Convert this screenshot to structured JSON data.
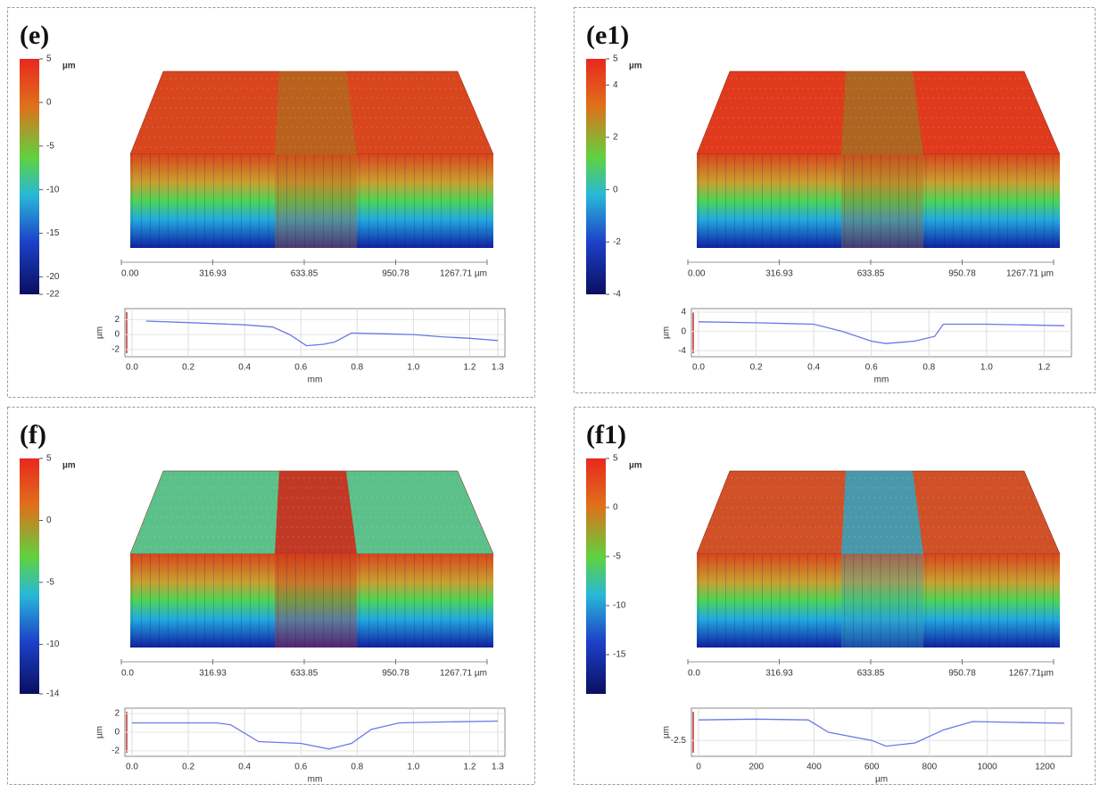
{
  "panels": [
    {
      "label": "(e)",
      "colorbar": {
        "unit": "µm",
        "lim": [
          -22,
          5
        ],
        "ticks": [
          5,
          0,
          -5,
          -10,
          -15,
          -20,
          -22
        ]
      },
      "surface": {
        "xlim": [
          0,
          1267.71
        ],
        "xticks": [
          {
            "value": 0,
            "label": "0.00"
          },
          316.93,
          633.85,
          950.78,
          {
            "value": 1267.71,
            "label": "1267.71 µm"
          }
        ]
      },
      "profile": {
        "ylabel": "µm",
        "xlabel": "mm",
        "xlim": [
          0,
          1.3
        ],
        "ylim": [
          -2.5,
          3
        ],
        "xticks": [
          {
            "value": 0,
            "label": "0.0"
          },
          0.2,
          0.4,
          0.6,
          0.8,
          {
            "value": 1,
            "label": "1.0"
          },
          1.2,
          1.3
        ],
        "yticks": [
          2,
          0,
          -2
        ],
        "x": [
          0.05,
          0.2,
          0.4,
          0.5,
          0.56,
          0.62,
          0.68,
          0.72,
          0.78,
          0.9,
          1.0,
          1.1,
          1.2,
          1.3
        ],
        "values": [
          1.8,
          1.6,
          1.3,
          1.0,
          0,
          -1.5,
          -1.3,
          -1.0,
          0.2,
          0.1,
          0,
          -0.3,
          -0.5,
          -0.8
        ]
      }
    },
    {
      "label": "(e1)",
      "colorbar": {
        "unit": "µm",
        "lim": [
          -4,
          5
        ],
        "ticks": [
          5,
          4,
          2,
          0,
          -2,
          -4
        ]
      },
      "surface": {
        "xlim": [
          0,
          1267.71
        ],
        "xticks": [
          {
            "value": 0,
            "label": "0.00"
          },
          316.93,
          633.85,
          950.78,
          {
            "value": 1267.71,
            "label": "1267.71 µm"
          }
        ]
      },
      "profile": {
        "ylabel": "µm",
        "xlabel": "mm",
        "xlim": [
          0,
          1.27
        ],
        "ylim": [
          -4.5,
          4
        ],
        "xticks": [
          {
            "value": 0,
            "label": "0.0"
          },
          0.2,
          0.4,
          0.6,
          0.8,
          {
            "value": 1,
            "label": "1.0"
          },
          1.2
        ],
        "yticks": [
          4,
          0,
          -4
        ],
        "x": [
          0,
          0.2,
          0.4,
          0.5,
          0.6,
          0.65,
          0.75,
          0.82,
          0.85,
          1.0,
          1.1,
          1.27
        ],
        "values": [
          2,
          1.8,
          1.5,
          0,
          -2,
          -2.5,
          -2,
          -1,
          1.5,
          1.5,
          1.4,
          1.2
        ]
      }
    },
    {
      "label": "(f)",
      "colorbar": {
        "unit": "µm",
        "lim": [
          -14,
          5
        ],
        "ticks": [
          5,
          0,
          -5,
          -10,
          -14
        ]
      },
      "surface": {
        "xlim": [
          0,
          1267.71
        ],
        "xticks": [
          {
            "value": 0,
            "label": "0.0"
          },
          316.93,
          633.85,
          950.78,
          {
            "value": 1267.71,
            "label": "1267.71 µm"
          }
        ]
      },
      "profile": {
        "ylabel": "µm",
        "xlabel": "mm",
        "xlim": [
          0,
          1.3
        ],
        "ylim": [
          -2.2,
          2.2
        ],
        "xticks": [
          {
            "value": 0,
            "label": "0.0"
          },
          0.2,
          0.4,
          0.6,
          0.8,
          {
            "value": 1,
            "label": "1.0"
          },
          1.2,
          1.3
        ],
        "yticks": [
          2,
          0,
          -2
        ],
        "x": [
          0,
          0.15,
          0.3,
          0.35,
          0.45,
          0.6,
          0.7,
          0.78,
          0.85,
          0.95,
          1.1,
          1.3
        ],
        "values": [
          1,
          1,
          1,
          0.8,
          -1,
          -1.2,
          -1.8,
          -1.2,
          0.3,
          1,
          1.1,
          1.2
        ]
      }
    },
    {
      "label": "(f1)",
      "colorbar": {
        "unit": "µm",
        "lim": [
          -19,
          5
        ],
        "ticks": [
          5,
          0,
          -5,
          -10,
          -15
        ]
      },
      "surface": {
        "xlim": [
          0,
          1267.71
        ],
        "xticks": [
          {
            "value": 0,
            "label": "0.0"
          },
          316.93,
          633.85,
          950.78,
          {
            "value": 1267.71,
            "label": "1267.71µm"
          }
        ]
      },
      "profile": {
        "ylabel": "µm",
        "xlabel": "µm",
        "xlim": [
          0,
          1267
        ],
        "ylim": [
          -4,
          1
        ],
        "xticks": [
          0,
          200,
          400,
          600,
          800,
          1000,
          1200
        ],
        "yticks": [
          -2.5
        ],
        "x": [
          0,
          200,
          380,
          450,
          600,
          650,
          750,
          850,
          950,
          1100,
          1267
        ],
        "values": [
          0,
          0.1,
          0,
          -1.5,
          -2.5,
          -3.2,
          -2.8,
          -1.2,
          -0.2,
          -0.3,
          -0.4
        ]
      }
    }
  ]
}
